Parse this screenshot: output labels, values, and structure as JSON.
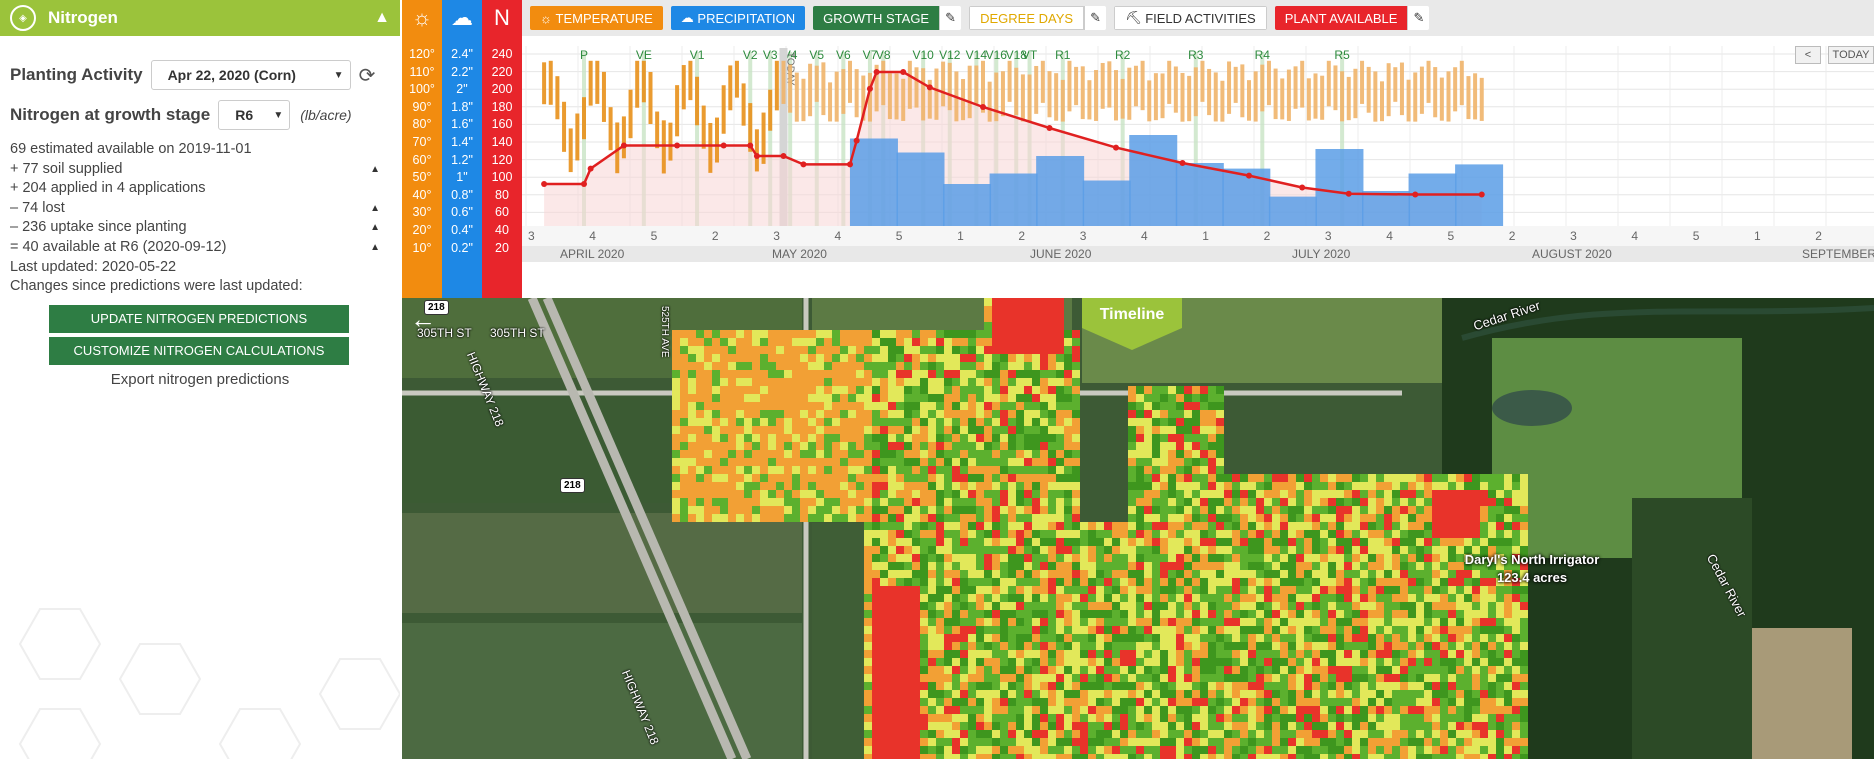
{
  "sidebar": {
    "title": "Nitrogen",
    "planting_label": "Planting Activity",
    "planting_value": "Apr 22, 2020 (Corn)",
    "stage_label": "Nitrogen at growth stage",
    "stage_value": "R6",
    "stage_unit": "(lb/acre)",
    "lines": [
      {
        "text": "69 estimated available on 2019-11-01",
        "toggle": false
      },
      {
        "text": "+ 77 soil supplied",
        "toggle": true
      },
      {
        "text": "+ 204 applied in 4 applications",
        "toggle": false
      },
      {
        "text": "– 74 lost",
        "toggle": true
      },
      {
        "text": "– 236 uptake since planting",
        "toggle": true
      },
      {
        "text": "= 40 available at R6 (2020-09-12)",
        "toggle": true
      },
      {
        "text": "Last updated: 2020-05-22",
        "toggle": false
      },
      {
        "text": "Changes since predictions were last updated:",
        "toggle": false
      }
    ],
    "update_button": "UPDATE NITROGEN PREDICTIONS",
    "customize_button": "CUSTOMIZE NITROGEN CALCULATIONS",
    "export_link": "Export nitrogen predictions"
  },
  "columns": {
    "temp_ticks": [
      "120°",
      "110°",
      "100°",
      "90°",
      "80°",
      "70°",
      "60°",
      "50°",
      "40°",
      "30°",
      "20°",
      "10°"
    ],
    "precip_ticks": [
      "2.4\"",
      "2.2\"",
      "2\"",
      "1.8\"",
      "1.6\"",
      "1.4\"",
      "1.2\"",
      "1\"",
      "0.8\"",
      "0.6\"",
      "0.4\"",
      "0.2\""
    ],
    "nitro_ticks": [
      "240",
      "220",
      "200",
      "180",
      "160",
      "140",
      "120",
      "100",
      "80",
      "60",
      "40",
      "20"
    ],
    "nitro_letter": "N"
  },
  "toolbar": {
    "temperature": "TEMPERATURE",
    "precipitation": "PRECIPITATION",
    "growth_stage": "GROWTH STAGE",
    "degree_days": "DEGREE DAYS",
    "field_activities": "FIELD ACTIVITIES",
    "plant_available": "PLANT AVAILABLE",
    "prev": "<",
    "today": "TODAY"
  },
  "chart_data": {
    "type": "line",
    "title": "",
    "today_label": "TODAY",
    "growth_stages": [
      {
        "label": "P",
        "day": 0
      },
      {
        "label": "VE",
        "day": 9
      },
      {
        "label": "V1",
        "day": 17
      },
      {
        "label": "V2",
        "day": 25
      },
      {
        "label": "V3",
        "day": 28
      },
      {
        "label": "V4",
        "day": 31
      },
      {
        "label": "V5",
        "day": 35
      },
      {
        "label": "V6",
        "day": 39
      },
      {
        "label": "V7",
        "day": 43
      },
      {
        "label": "V8",
        "day": 45
      },
      {
        "label": "V10",
        "day": 51
      },
      {
        "label": "V12",
        "day": 55
      },
      {
        "label": "V14",
        "day": 59
      },
      {
        "label": "V16",
        "day": 62
      },
      {
        "label": "V18",
        "day": 65
      },
      {
        "label": "VT",
        "day": 67
      },
      {
        "label": "R1",
        "day": 72
      },
      {
        "label": "R2",
        "day": 81
      },
      {
        "label": "R3",
        "day": 92
      },
      {
        "label": "R4",
        "day": 102
      },
      {
        "label": "R5",
        "day": 114
      }
    ],
    "today_day": 30,
    "months": [
      "APRIL 2020",
      "MAY 2020",
      "JUNE 2020",
      "JULY 2020",
      "AUGUST 2020",
      "SEPTEMBER"
    ],
    "week_ticks": [
      "3",
      "4",
      "5",
      "2",
      "3",
      "4",
      "5",
      "1",
      "2",
      "3",
      "4",
      "1",
      "2",
      "3",
      "4",
      "5",
      "2",
      "3",
      "4",
      "5",
      "1",
      "2"
    ],
    "plant_available_n": [
      {
        "day": -6,
        "value": 60
      },
      {
        "day": 0,
        "value": 60
      },
      {
        "day": 1,
        "value": 82
      },
      {
        "day": 6,
        "value": 115
      },
      {
        "day": 14,
        "value": 115
      },
      {
        "day": 21,
        "value": 115
      },
      {
        "day": 25,
        "value": 115
      },
      {
        "day": 26,
        "value": 100
      },
      {
        "day": 30,
        "value": 100
      },
      {
        "day": 33,
        "value": 88
      },
      {
        "day": 40,
        "value": 88
      },
      {
        "day": 41,
        "value": 122
      },
      {
        "day": 43,
        "value": 196
      },
      {
        "day": 44,
        "value": 220
      },
      {
        "day": 48,
        "value": 220
      },
      {
        "day": 52,
        "value": 198
      },
      {
        "day": 60,
        "value": 170
      },
      {
        "day": 70,
        "value": 140
      },
      {
        "day": 80,
        "value": 112
      },
      {
        "day": 90,
        "value": 90
      },
      {
        "day": 100,
        "value": 72
      },
      {
        "day": 108,
        "value": 55
      },
      {
        "day": 115,
        "value": 46
      },
      {
        "day": 125,
        "value": 45
      },
      {
        "day": 135,
        "value": 45
      }
    ],
    "weekly_precip": [
      {
        "day": 43,
        "value": 1.25
      },
      {
        "day": 50,
        "value": 1.05
      },
      {
        "day": 57,
        "value": 0.6
      },
      {
        "day": 64,
        "value": 0.75
      },
      {
        "day": 71,
        "value": 1.0
      },
      {
        "day": 78,
        "value": 0.65
      },
      {
        "day": 85,
        "value": 1.3
      },
      {
        "day": 92,
        "value": 0.9
      },
      {
        "day": 99,
        "value": 0.82
      },
      {
        "day": 106,
        "value": 0.42
      },
      {
        "day": 113,
        "value": 1.1
      },
      {
        "day": 120,
        "value": 0.5
      },
      {
        "day": 127,
        "value": 0.75
      },
      {
        "day": 134,
        "value": 0.88
      }
    ],
    "ylim_nitrogen": [
      0,
      240
    ],
    "ylim_temperature": [
      0,
      120
    ],
    "ylim_precip": [
      0,
      2.4
    ]
  },
  "map": {
    "timeline_label": "Timeline",
    "field_name": "Daryl's North Irrigator",
    "field_acres": "123.4 acres",
    "road_labels": [
      "305TH ST",
      "305TH ST",
      "HIGHWAY 218",
      "HIGHWAY 218",
      "525TH AVE"
    ],
    "river_labels": [
      "Cedar River",
      "Cedar River"
    ],
    "shields": [
      "218",
      "218"
    ],
    "colors": {
      "red": "#e8332a",
      "orange": "#f2a035",
      "yellow": "#e2e85a",
      "green": "#5cb02e",
      "dkgreen": "#3e961e"
    }
  }
}
